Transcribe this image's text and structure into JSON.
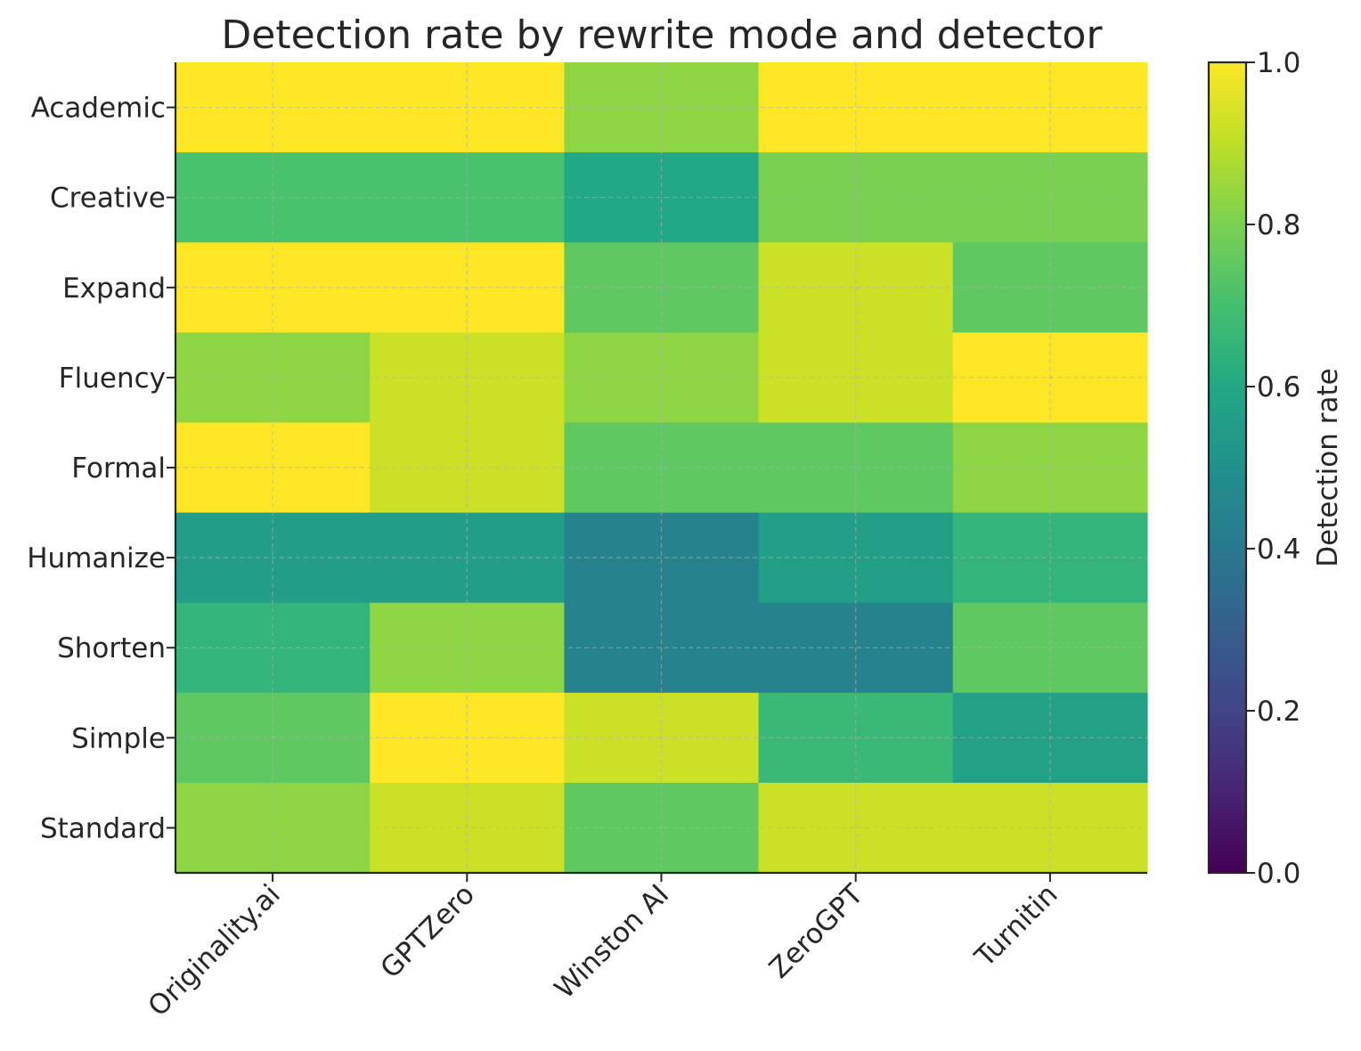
{
  "chart_data": {
    "type": "heatmap",
    "title": "Detection rate by rewrite mode and detector",
    "x_categories": [
      "Originality.ai",
      "GPTZero",
      "Winston AI",
      "ZeroGPT",
      "Turnitin"
    ],
    "y_categories": [
      "Academic",
      "Creative",
      "Expand",
      "Fluency",
      "Formal",
      "Humanize",
      "Shorten",
      "Simple",
      "Standard"
    ],
    "values": [
      [
        1.0,
        1.0,
        0.83,
        1.0,
        1.0
      ],
      [
        0.71,
        0.71,
        0.6,
        0.8,
        0.8
      ],
      [
        1.0,
        1.0,
        0.75,
        0.92,
        0.75
      ],
      [
        0.83,
        0.92,
        0.83,
        0.92,
        1.0
      ],
      [
        1.0,
        0.92,
        0.75,
        0.75,
        0.83
      ],
      [
        0.55,
        0.55,
        0.44,
        0.56,
        0.65
      ],
      [
        0.65,
        0.83,
        0.44,
        0.44,
        0.75
      ],
      [
        0.75,
        1.0,
        0.92,
        0.67,
        0.57
      ],
      [
        0.83,
        0.92,
        0.75,
        0.92,
        0.92
      ]
    ],
    "colorbar": {
      "label": "Detection rate",
      "range": [
        0.0,
        1.0
      ],
      "ticks": [
        "0.0",
        "0.2",
        "0.4",
        "0.6",
        "0.8",
        "1.0"
      ],
      "colormap": "viridis"
    },
    "grid": true
  }
}
